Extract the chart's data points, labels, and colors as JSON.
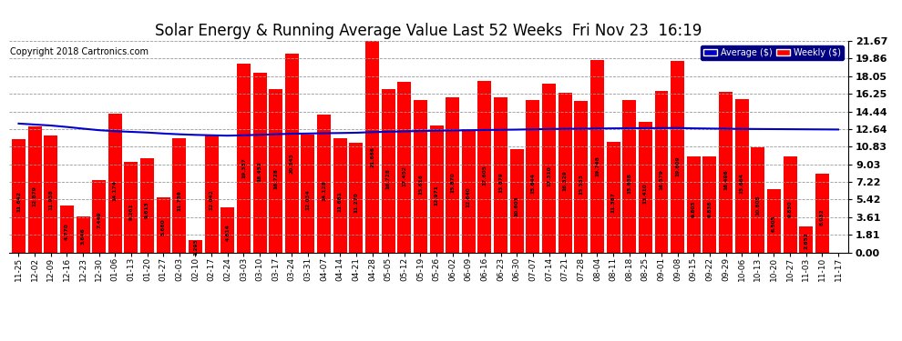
{
  "title": "Solar Energy & Running Average Value Last 52 Weeks  Fri Nov 23  16:19",
  "copyright": "Copyright 2018 Cartronics.com",
  "bar_color": "#ff0000",
  "avg_line_color": "#0000cd",
  "background_color": "#ffffff",
  "plot_bg_color": "#ffffff",
  "grid_color": "#999999",
  "categories": [
    "11-25",
    "12-02",
    "12-09",
    "12-16",
    "12-23",
    "12-30",
    "01-06",
    "01-13",
    "01-20",
    "01-27",
    "02-03",
    "02-10",
    "02-17",
    "02-24",
    "03-03",
    "03-10",
    "03-17",
    "03-24",
    "03-31",
    "04-07",
    "04-14",
    "04-21",
    "04-28",
    "05-05",
    "05-12",
    "05-19",
    "05-26",
    "06-02",
    "06-09",
    "06-16",
    "06-23",
    "06-30",
    "07-07",
    "07-14",
    "07-21",
    "07-28",
    "08-04",
    "08-11",
    "08-18",
    "08-25",
    "09-01",
    "09-08",
    "09-15",
    "09-22",
    "09-29",
    "10-06",
    "10-13",
    "10-20",
    "10-27",
    "11-03",
    "11-10",
    "11-17"
  ],
  "weekly_values": [
    11.642,
    12.879,
    11.938,
    4.77,
    3.646,
    7.449,
    14.174,
    9.261,
    9.613,
    5.66,
    11.736,
    1.293,
    12.042,
    4.614,
    19.337,
    18.452,
    16.728,
    20.343,
    12.034,
    14.128,
    11.681,
    11.27,
    21.666,
    16.728,
    17.452,
    15.616,
    12.971,
    15.87,
    12.64,
    17.605,
    15.879,
    10.603,
    15.644,
    17.31,
    16.329,
    15.533,
    19.748,
    11.367,
    15.638,
    13.41,
    16.579,
    19.609,
    9.803,
    9.836,
    16.496,
    15.664,
    10.805,
    6.505,
    9.83,
    2.652,
    8.032,
    0.0
  ],
  "avg_values": [
    13.2,
    13.1,
    13.0,
    12.85,
    12.68,
    12.52,
    12.42,
    12.35,
    12.28,
    12.18,
    12.1,
    12.04,
    12.0,
    11.96,
    12.0,
    12.05,
    12.1,
    12.16,
    12.18,
    12.21,
    12.23,
    12.26,
    12.32,
    12.36,
    12.4,
    12.44,
    12.47,
    12.49,
    12.51,
    12.54,
    12.56,
    12.58,
    12.61,
    12.64,
    12.66,
    12.67,
    12.69,
    12.71,
    12.72,
    12.73,
    12.74,
    12.75,
    12.71,
    12.69,
    12.67,
    12.65,
    12.64,
    12.63,
    12.62,
    12.61,
    12.6,
    12.59
  ],
  "yticks": [
    0.0,
    1.81,
    3.61,
    5.42,
    7.22,
    9.03,
    10.83,
    12.64,
    14.44,
    16.25,
    18.05,
    19.86,
    21.67
  ],
  "ylim": [
    0.0,
    21.67
  ],
  "legend_avg_color": "#0000cc",
  "legend_weekly_color": "#ff0000",
  "title_fontsize": 12,
  "copyright_fontsize": 7
}
